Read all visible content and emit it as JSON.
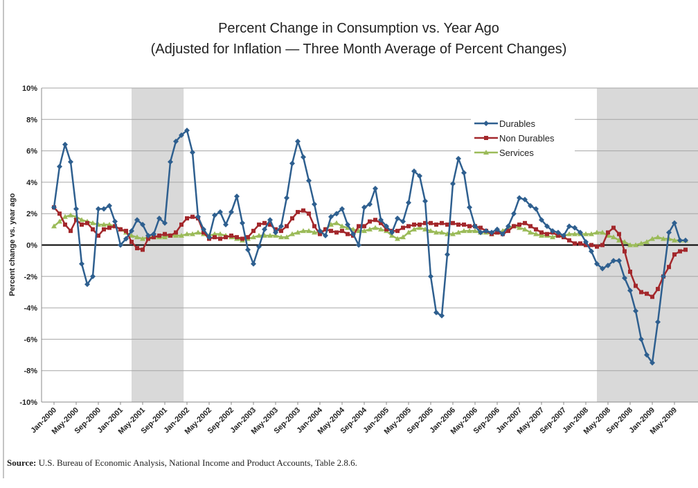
{
  "chart_data": {
    "type": "line",
    "title": "Percent Change in Consumption vs. Year Ago",
    "subtitle": "(Adjusted for Inflation — Three Month Average of Percent Changes)",
    "y_label": "Percent change vs. year ago",
    "source_label": "Source:",
    "source": "U.S. Bureau of Economic Analysis, National Income and Product Accounts, Table 2.8.6.",
    "categories": [
      "Jan-2000",
      null,
      null,
      null,
      "May-2000",
      null,
      null,
      null,
      "Sep-2000",
      null,
      null,
      null,
      "Jan-2001",
      null,
      null,
      null,
      "May-2001",
      null,
      null,
      null,
      "Sep-2001",
      null,
      null,
      null,
      "Jan-2002",
      null,
      null,
      null,
      "May-2002",
      null,
      null,
      null,
      "Sep-2002",
      null,
      null,
      null,
      "Jan-2003",
      null,
      null,
      null,
      "May-2003",
      null,
      null,
      null,
      "Sep-2003",
      null,
      null,
      null,
      "Jan-2004",
      null,
      null,
      null,
      "May-2004",
      null,
      null,
      null,
      "Sep-2004",
      null,
      null,
      null,
      "Jan-2005",
      null,
      null,
      null,
      "May-2005",
      null,
      null,
      null,
      "Sep-2005",
      null,
      null,
      null,
      "Jan-2006",
      null,
      null,
      null,
      "May-2006",
      null,
      null,
      null,
      "Sep-2006",
      null,
      null,
      null,
      "Jan-2007",
      null,
      null,
      null,
      "May-2007",
      null,
      null,
      null,
      "Sep-2007",
      null,
      null,
      null,
      "Jan-2008",
      null,
      null,
      null,
      "May-2008",
      null,
      null,
      null,
      "Sep-2008",
      null,
      null,
      null,
      "Jan-2009",
      null,
      null,
      null,
      "May-2009",
      null,
      null
    ],
    "series": [
      {
        "name": "Durables",
        "color": "#2e5f8f",
        "marker": "diamond",
        "values": [
          2.4,
          5.0,
          6.4,
          5.3,
          2.3,
          -1.2,
          -2.5,
          -2.0,
          2.3,
          2.3,
          2.5,
          1.5,
          0.0,
          0.4,
          0.9,
          1.6,
          1.3,
          0.6,
          0.7,
          1.7,
          1.4,
          5.3,
          6.6,
          7.0,
          7.3,
          5.9,
          1.8,
          1.0,
          0.5,
          1.9,
          2.1,
          1.3,
          2.1,
          3.1,
          1.4,
          -0.3,
          -1.2,
          -0.1,
          1.0,
          1.6,
          0.8,
          1.2,
          3.0,
          5.2,
          6.6,
          5.6,
          4.1,
          2.6,
          0.9,
          0.6,
          1.8,
          2.0,
          2.3,
          1.3,
          0.7,
          0.0,
          2.4,
          2.6,
          3.6,
          1.6,
          1.2,
          0.8,
          1.7,
          1.5,
          2.7,
          4.7,
          4.4,
          2.8,
          -2.0,
          -4.3,
          -4.5,
          -0.6,
          3.9,
          5.5,
          4.6,
          2.4,
          1.2,
          0.8,
          0.9,
          0.8,
          1.0,
          0.7,
          1.2,
          2.0,
          3.0,
          2.9,
          2.5,
          2.3,
          1.6,
          1.2,
          0.9,
          0.8,
          0.6,
          1.2,
          1.1,
          0.8,
          0.2,
          -0.4,
          -1.2,
          -1.5,
          -1.3,
          -1.0,
          -1.0,
          -2.1,
          -2.9,
          -4.2,
          -6.0,
          -7.0,
          -7.5,
          -4.9,
          -2.0,
          0.8,
          1.4,
          0.3,
          0.3
        ]
      },
      {
        "name": "Non Durables",
        "color": "#a3282c",
        "marker": "square",
        "values": [
          2.4,
          2.0,
          1.3,
          0.9,
          1.6,
          1.3,
          1.4,
          1.0,
          0.6,
          1.0,
          1.1,
          1.2,
          1.0,
          0.9,
          0.2,
          -0.2,
          -0.3,
          0.4,
          0.5,
          0.6,
          0.7,
          0.6,
          0.8,
          1.3,
          1.7,
          1.8,
          1.7,
          0.8,
          0.4,
          0.5,
          0.4,
          0.5,
          0.6,
          0.5,
          0.4,
          0.5,
          0.9,
          1.3,
          1.4,
          1.3,
          1.0,
          0.9,
          1.2,
          1.7,
          2.1,
          2.2,
          2.0,
          1.2,
          0.7,
          1.0,
          0.9,
          0.8,
          0.9,
          0.7,
          0.6,
          1.2,
          1.2,
          1.5,
          1.6,
          1.4,
          1.0,
          0.9,
          0.9,
          1.1,
          1.2,
          1.3,
          1.3,
          1.4,
          1.4,
          1.3,
          1.4,
          1.3,
          1.4,
          1.3,
          1.3,
          1.2,
          1.2,
          1.1,
          0.9,
          0.7,
          0.8,
          0.7,
          0.9,
          1.2,
          1.3,
          1.4,
          1.2,
          1.0,
          0.8,
          0.7,
          0.8,
          0.6,
          0.5,
          0.3,
          0.1,
          0.1,
          0.0,
          0.0,
          -0.1,
          0.0,
          0.8,
          1.1,
          0.7,
          -0.4,
          -1.7,
          -2.6,
          -3.0,
          -3.1,
          -3.3,
          -2.8,
          -2.0,
          -1.4,
          -0.6,
          -0.4,
          -0.3
        ]
      },
      {
        "name": "Services",
        "color": "#9bbb59",
        "marker": "triangle",
        "values": [
          1.2,
          1.5,
          1.8,
          1.9,
          1.8,
          1.6,
          1.5,
          1.4,
          1.3,
          1.3,
          1.3,
          1.2,
          1.0,
          0.8,
          0.6,
          0.5,
          0.4,
          0.5,
          0.5,
          0.5,
          0.5,
          0.6,
          0.6,
          0.6,
          0.7,
          0.7,
          0.8,
          0.7,
          0.6,
          0.7,
          0.7,
          0.6,
          0.5,
          0.4,
          0.3,
          0.4,
          0.5,
          0.6,
          0.6,
          0.6,
          0.6,
          0.5,
          0.5,
          0.7,
          0.8,
          0.9,
          0.9,
          0.8,
          0.8,
          1.0,
          1.3,
          1.4,
          1.2,
          1.1,
          1.0,
          0.9,
          0.9,
          1.0,
          1.1,
          1.0,
          0.9,
          0.6,
          0.4,
          0.5,
          0.8,
          1.0,
          1.1,
          1.0,
          0.9,
          0.8,
          0.8,
          0.7,
          0.7,
          0.8,
          0.9,
          0.9,
          0.9,
          0.8,
          0.8,
          0.7,
          0.8,
          0.9,
          1.1,
          1.2,
          1.1,
          1.0,
          0.8,
          0.7,
          0.6,
          0.6,
          0.5,
          0.6,
          0.6,
          0.7,
          0.7,
          0.7,
          0.7,
          0.7,
          0.8,
          0.8,
          0.6,
          0.5,
          0.3,
          0.2,
          0.0,
          0.0,
          0.1,
          0.2,
          0.4,
          0.5,
          0.4,
          0.4,
          0.3,
          0.3,
          0.3
        ]
      }
    ],
    "shaded_ranges": [
      [
        14,
        23.4
      ],
      [
        98,
        116.5
      ]
    ],
    "ylim": [
      -10,
      10
    ],
    "yticks": [
      {
        "value": -10,
        "label": "-10%"
      },
      {
        "value": -8,
        "label": "-8%"
      },
      {
        "value": -6,
        "label": "-6%"
      },
      {
        "value": -4,
        "label": "-4%"
      },
      {
        "value": -2,
        "label": "-2%"
      },
      {
        "value": 0,
        "label": "0%"
      },
      {
        "value": 2,
        "label": "2%"
      },
      {
        "value": 4,
        "label": "4%"
      },
      {
        "value": 6,
        "label": "6%"
      },
      {
        "value": 8,
        "label": "8%"
      },
      {
        "value": 10,
        "label": "10%"
      }
    ],
    "grid": true,
    "legend": "upper right"
  }
}
